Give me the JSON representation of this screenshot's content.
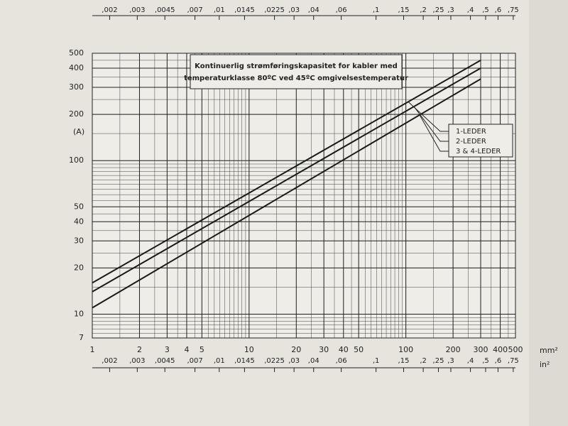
{
  "chart_data": {
    "type": "line",
    "title": [
      "Kontinuerlig strømføringskapasitet for kabler med",
      "temperaturklasse 80ºC ved 45ºC omgivelsestemperatur"
    ],
    "ylabel": "(A)",
    "xlabel": "mm²",
    "x2label": "in²",
    "log_x": true,
    "log_y": true,
    "grid": true,
    "minor_grid": true,
    "xlim": [
      1,
      500
    ],
    "xticks": [
      1,
      2,
      3,
      4,
      5,
      10,
      20,
      30,
      40,
      50,
      100,
      200,
      300,
      400,
      500
    ],
    "ylim": [
      7,
      500
    ],
    "yticks": [
      7,
      10,
      20,
      30,
      40,
      50,
      100,
      200,
      300,
      400,
      500
    ],
    "x2lim": [
      0.00155,
      0.775
    ],
    "x2ticks": [
      {
        "value": 0.002,
        "label": ",002"
      },
      {
        "value": 0.003,
        "label": ",003"
      },
      {
        "value": 0.0045,
        "label": ",0045"
      },
      {
        "value": 0.007,
        "label": ",007"
      },
      {
        "value": 0.01,
        "label": ",01"
      },
      {
        "value": 0.0145,
        "label": ",0145"
      },
      {
        "value": 0.0225,
        "label": ",0225"
      },
      {
        "value": 0.03,
        "label": ",03"
      },
      {
        "value": 0.04,
        "label": ",04"
      },
      {
        "value": 0.06,
        "label": ",06"
      },
      {
        "value": 0.1,
        "label": ",1"
      },
      {
        "value": 0.15,
        "label": ",15"
      },
      {
        "value": 0.2,
        "label": ",2"
      },
      {
        "value": 0.25,
        "label": ",25"
      },
      {
        "value": 0.3,
        "label": ",3"
      },
      {
        "value": 0.4,
        "label": ",4"
      },
      {
        "value": 0.5,
        "label": ",5"
      },
      {
        "value": 0.6,
        "label": ",6"
      },
      {
        "value": 0.75,
        "label": ",75"
      }
    ],
    "x": [
      1,
      300
    ],
    "series": [
      {
        "name": "1-LEDER",
        "color": "#1a1a1a",
        "values": [
          16,
          450
        ]
      },
      {
        "name": "2-LEDER",
        "color": "#1a1a1a",
        "values": [
          14,
          400
        ]
      },
      {
        "name": "3 & 4-LEDER",
        "color": "#1a1a1a",
        "values": [
          11,
          340
        ]
      }
    ]
  }
}
